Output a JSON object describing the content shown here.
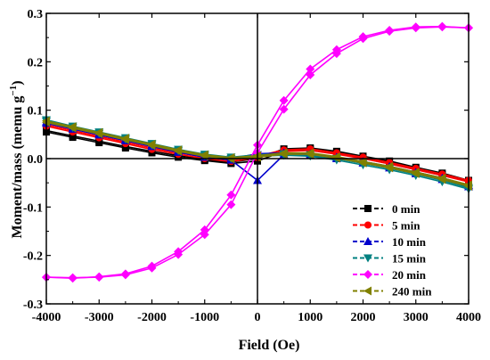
{
  "chart_data": {
    "type": "line",
    "title": "",
    "xlabel": "Field (Oe)",
    "ylabel": "Moment/mass (memu g",
    "ylabel_superscript": "−1",
    "ylabel_close": ")",
    "xlim": [
      -4000,
      4000
    ],
    "ylim": [
      -0.3,
      0.3
    ],
    "x_ticks": [
      -4000,
      -3000,
      -2000,
      -1000,
      0,
      1000,
      2000,
      3000,
      4000
    ],
    "x_tick_labels": [
      "-4000",
      "-3000",
      "-2000",
      "-1000",
      "0",
      "1000",
      "2000",
      "3000",
      "4000"
    ],
    "y_ticks": [
      -0.3,
      -0.2,
      -0.1,
      0.0,
      0.1,
      0.2,
      0.3
    ],
    "y_tick_labels": [
      "-0.3",
      "-0.2",
      "-0.1",
      "0.0",
      "0.1",
      "0.2",
      "0.3"
    ],
    "grid": false,
    "legend_position": "bottom-right",
    "x": [
      -4000,
      -3500,
      -3000,
      -2500,
      -2000,
      -1500,
      -1000,
      -500,
      0,
      500,
      1000,
      1500,
      2000,
      2500,
      3000,
      3500,
      4000
    ],
    "series": [
      {
        "name": "0 min",
        "color": "#000000",
        "marker": "square",
        "up": [
          0.058,
          0.047,
          0.036,
          0.025,
          0.015,
          0.006,
          -0.002,
          -0.007,
          0.0,
          0.02,
          0.022,
          0.015,
          0.005,
          -0.005,
          -0.018,
          -0.03,
          -0.045
        ],
        "down": [
          0.055,
          0.044,
          0.033,
          0.022,
          0.012,
          0.003,
          -0.004,
          -0.01,
          -0.005,
          0.015,
          0.02,
          0.012,
          0.002,
          -0.008,
          -0.021,
          -0.033,
          -0.048
        ]
      },
      {
        "name": "5 min",
        "color": "#ff0000",
        "marker": "circle",
        "up": [
          0.07,
          0.058,
          0.046,
          0.034,
          0.022,
          0.012,
          0.003,
          -0.003,
          0.005,
          0.018,
          0.02,
          0.012,
          0.003,
          -0.008,
          -0.02,
          -0.032,
          -0.045
        ],
        "down": [
          0.067,
          0.055,
          0.043,
          0.031,
          0.019,
          0.009,
          0.0,
          -0.006,
          0.002,
          0.015,
          0.017,
          0.009,
          0.0,
          -0.011,
          -0.023,
          -0.035,
          -0.048
        ]
      },
      {
        "name": "10 min",
        "color": "#0000cc",
        "marker": "triangle-up",
        "up": [
          0.076,
          0.064,
          0.052,
          0.04,
          0.028,
          0.016,
          0.006,
          0.0,
          0.01,
          0.012,
          0.01,
          0.003,
          -0.006,
          -0.016,
          -0.028,
          -0.04,
          -0.055
        ],
        "down": [
          0.073,
          0.061,
          0.049,
          0.037,
          0.025,
          0.013,
          0.003,
          -0.003,
          -0.045,
          0.008,
          0.007,
          0.0,
          -0.009,
          -0.019,
          -0.031,
          -0.043,
          -0.058
        ]
      },
      {
        "name": "15 min",
        "color": "#008080",
        "marker": "triangle-down",
        "up": [
          0.08,
          0.067,
          0.055,
          0.043,
          0.031,
          0.019,
          0.009,
          0.003,
          0.008,
          0.01,
          0.008,
          0.0,
          -0.01,
          -0.02,
          -0.032,
          -0.045,
          -0.06
        ],
        "down": [
          0.077,
          0.064,
          0.052,
          0.04,
          0.028,
          0.016,
          0.006,
          0.0,
          0.005,
          0.007,
          0.005,
          -0.003,
          -0.013,
          -0.023,
          -0.035,
          -0.048,
          -0.063
        ]
      },
      {
        "name": "20 min",
        "color": "#ff00ff",
        "marker": "diamond",
        "up": [
          -0.245,
          -0.247,
          -0.244,
          -0.238,
          -0.222,
          -0.192,
          -0.147,
          -0.075,
          0.028,
          0.12,
          0.185,
          0.225,
          0.252,
          0.265,
          0.272,
          0.273,
          0.27
        ],
        "down": [
          -0.245,
          -0.246,
          -0.245,
          -0.24,
          -0.226,
          -0.198,
          -0.157,
          -0.095,
          0.012,
          0.102,
          0.173,
          0.217,
          0.248,
          0.263,
          0.27,
          0.272,
          0.27
        ]
      },
      {
        "name": "240 min",
        "color": "#808000",
        "marker": "triangle-left",
        "up": [
          0.078,
          0.066,
          0.054,
          0.042,
          0.03,
          0.018,
          0.008,
          0.002,
          0.006,
          0.012,
          0.012,
          0.004,
          -0.006,
          -0.016,
          -0.028,
          -0.04,
          -0.054
        ],
        "down": [
          0.075,
          0.063,
          0.051,
          0.039,
          0.027,
          0.015,
          0.005,
          -0.001,
          0.003,
          0.009,
          0.009,
          0.001,
          -0.009,
          -0.019,
          -0.031,
          -0.043,
          -0.057
        ]
      }
    ]
  }
}
